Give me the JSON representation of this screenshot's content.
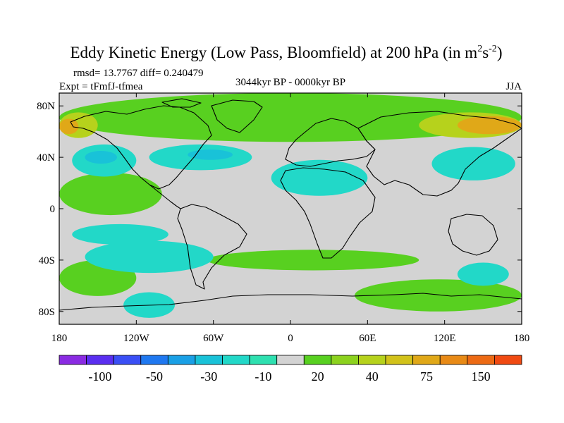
{
  "title": {
    "main": "Eddy Kinetic Energy (Low Pass, Bloomfield) at 200 hPa (in m",
    "sup1": "2",
    "mid": "s",
    "sup2": "-2",
    "end": ")"
  },
  "stats": "rmsd= 13.7767  diff= 0.240479",
  "experiment": "Expt = tFmfJ-tfmea",
  "period": "3044kyr BP - 0000kyr BP",
  "season": "JJA",
  "map": {
    "projection": "cylindrical-equidistant",
    "lon_range": [
      -180,
      180
    ],
    "lat_range": [
      -90,
      90
    ],
    "lon_ticks": [
      {
        "value": -180,
        "label": "180"
      },
      {
        "value": -120,
        "label": "120W"
      },
      {
        "value": -60,
        "label": "60W"
      },
      {
        "value": 0,
        "label": "0"
      },
      {
        "value": 60,
        "label": "60E"
      },
      {
        "value": 120,
        "label": "120E"
      },
      {
        "value": 180,
        "label": "180"
      }
    ],
    "lat_ticks": [
      {
        "value": 80,
        "label": "80N"
      },
      {
        "value": 40,
        "label": "40N"
      },
      {
        "value": 0,
        "label": "0"
      },
      {
        "value": -40,
        "label": "40S"
      },
      {
        "value": -80,
        "label": "80S"
      }
    ],
    "background_color": "#d3d3d3",
    "coast_color": "#000000"
  },
  "colorbar": {
    "colors": [
      "#8a2be2",
      "#5a2ef0",
      "#3a4ff5",
      "#1f78f0",
      "#1aa0e6",
      "#19c2d8",
      "#22d8c8",
      "#2ee0b0",
      "#d3d3d3",
      "#58d020",
      "#8cd21e",
      "#b6d21c",
      "#d2c21a",
      "#e0a818",
      "#e88a16",
      "#ec6a14",
      "#f04a12"
    ],
    "labels": [
      {
        "boundary": 1,
        "text": "-100"
      },
      {
        "boundary": 3,
        "text": "-50"
      },
      {
        "boundary": 5,
        "text": "-30"
      },
      {
        "boundary": 7,
        "text": "-10"
      },
      {
        "boundary": 9,
        "text": "20"
      },
      {
        "boundary": 11,
        "text": "40"
      },
      {
        "boundary": 13,
        "text": "75"
      },
      {
        "boundary": 15,
        "text": "150"
      }
    ]
  },
  "field_patches": [
    {
      "class": "green",
      "color": "#58d020",
      "lon": [
        -180,
        180
      ],
      "lat": [
        52,
        90
      ]
    },
    {
      "class": "green",
      "color": "#58d020",
      "lon": [
        -180,
        -100
      ],
      "lat": [
        -5,
        28
      ]
    },
    {
      "class": "green",
      "color": "#58d020",
      "lon": [
        -65,
        100
      ],
      "lat": [
        -48,
        -32
      ]
    },
    {
      "class": "green",
      "color": "#58d020",
      "lon": [
        -180,
        -120
      ],
      "lat": [
        -68,
        -40
      ]
    },
    {
      "class": "green",
      "color": "#58d020",
      "lon": [
        50,
        180
      ],
      "lat": [
        -80,
        -55
      ]
    },
    {
      "class": "yellow",
      "color": "#b6d21c",
      "lon": [
        -180,
        -150
      ],
      "lat": [
        55,
        75
      ]
    },
    {
      "class": "yellow",
      "color": "#b6d21c",
      "lon": [
        100,
        180
      ],
      "lat": [
        55,
        75
      ]
    },
    {
      "class": "orange",
      "color": "#e0a818",
      "lon": [
        -180,
        -165
      ],
      "lat": [
        58,
        70
      ]
    },
    {
      "class": "orange",
      "color": "#e0a818",
      "lon": [
        130,
        180
      ],
      "lat": [
        58,
        72
      ]
    },
    {
      "class": "cyan",
      "color": "#22d8c8",
      "lon": [
        -170,
        -120
      ],
      "lat": [
        25,
        50
      ]
    },
    {
      "class": "cyan",
      "color": "#22d8c8",
      "lon": [
        -110,
        -30
      ],
      "lat": [
        30,
        50
      ]
    },
    {
      "class": "cyan",
      "color": "#22d8c8",
      "lon": [
        -15,
        60
      ],
      "lat": [
        10,
        38
      ]
    },
    {
      "class": "cyan",
      "color": "#22d8c8",
      "lon": [
        -170,
        -95
      ],
      "lat": [
        -28,
        -12
      ]
    },
    {
      "class": "cyan",
      "color": "#22d8c8",
      "lon": [
        -160,
        -60
      ],
      "lat": [
        -50,
        -25
      ]
    },
    {
      "class": "cyan",
      "color": "#22d8c8",
      "lon": [
        -130,
        -90
      ],
      "lat": [
        -85,
        -65
      ]
    },
    {
      "class": "cyan",
      "color": "#22d8c8",
      "lon": [
        110,
        175
      ],
      "lat": [
        22,
        48
      ]
    },
    {
      "class": "cyan",
      "color": "#22d8c8",
      "lon": [
        130,
        170
      ],
      "lat": [
        -60,
        -42
      ]
    },
    {
      "class": "blue",
      "color": "#19c2d8",
      "lon": [
        -160,
        -135
      ],
      "lat": [
        35,
        45
      ]
    },
    {
      "class": "blue",
      "color": "#19c2d8",
      "lon": [
        -80,
        -45
      ],
      "lat": [
        38,
        46
      ]
    }
  ]
}
